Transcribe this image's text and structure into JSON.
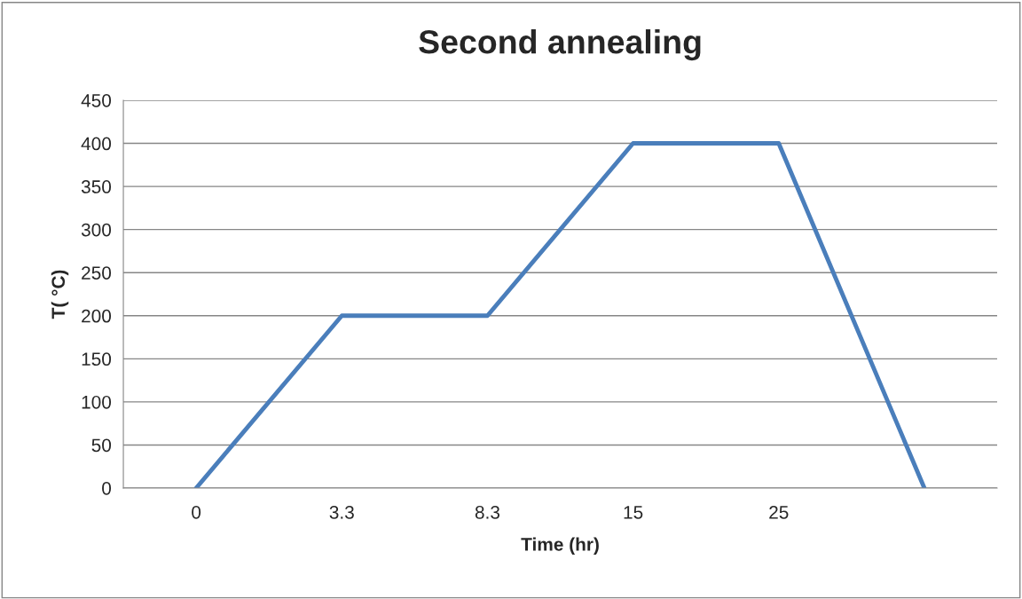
{
  "chart_data": {
    "type": "line",
    "title": "Second annealing",
    "xlabel": "Time (hr)",
    "ylabel": "T( °C)",
    "categories": [
      "0",
      "3.3",
      "8.3",
      "15",
      "25",
      null
    ],
    "series": [
      {
        "color": "#4a7ebb",
        "values": [
          0,
          200,
          200,
          400,
          400,
          0
        ]
      }
    ],
    "ylim": [
      0,
      450
    ],
    "yticks": [
      0,
      50,
      100,
      150,
      200,
      250,
      300,
      350,
      400,
      450
    ],
    "grid": "y",
    "legend": false,
    "marker": "none",
    "line_style": "solid"
  }
}
